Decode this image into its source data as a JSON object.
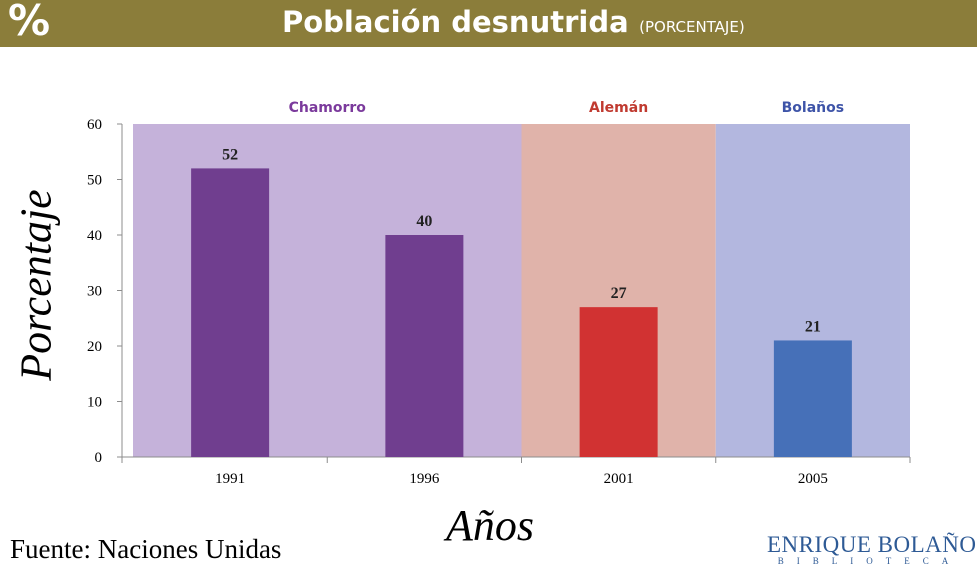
{
  "header": {
    "icon_symbol": "%",
    "title": "Población desnutrida",
    "subtitle": "(PORCENTAJE)",
    "background_color": "#8b7d3a"
  },
  "chart_data": {
    "type": "bar",
    "categories": [
      "1991",
      "1996",
      "2001",
      "2005"
    ],
    "values": [
      52,
      40,
      27,
      21
    ],
    "bar_colors": [
      "#703e8f",
      "#703e8f",
      "#d13232",
      "#4670b8"
    ],
    "xlabel": "Años",
    "ylabel": "Porcentaje",
    "ylim": [
      0,
      60
    ],
    "yticks": [
      0,
      10,
      20,
      30,
      40,
      50,
      60
    ],
    "data_labels": true,
    "grid": false,
    "periods": [
      {
        "name": "Chamorro",
        "categories": [
          "1991",
          "1996"
        ],
        "color": "#c5b2da",
        "label_color": "#7b3a9c"
      },
      {
        "name": "Alemán",
        "categories": [
          "2001"
        ],
        "color": "#e0b3aa",
        "label_color": "#c03a30"
      },
      {
        "name": "Bolaños",
        "categories": [
          "2005"
        ],
        "color": "#b3b7df",
        "label_color": "#3e54a8"
      }
    ]
  },
  "footer": {
    "source": "Fuente: Naciones Unidas",
    "logo_main": "ENRIQUE BOLAÑOS",
    "logo_sub": "BIBLIOTECA"
  }
}
